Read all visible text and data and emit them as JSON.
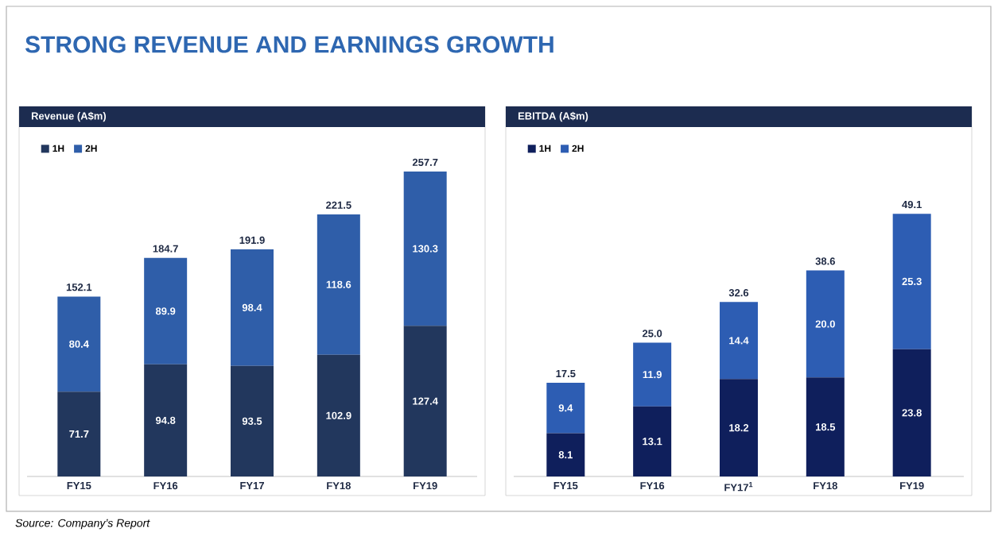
{
  "chart_data": [
    {
      "type": "bar",
      "title": "STRONG REVENUE AND EARNINGS GROWTH",
      "subtitle": "Revenue (A$m)",
      "categories": [
        "FY15",
        "FY16",
        "FY17",
        "FY18",
        "FY19"
      ],
      "stacked": true,
      "series": [
        {
          "name": "1H",
          "color": "#22375d",
          "values": [
            71.7,
            94.8,
            93.5,
            102.9,
            127.4
          ]
        },
        {
          "name": "2H",
          "color": "#2f5ea9",
          "values": [
            80.4,
            89.9,
            98.4,
            118.6,
            130.3
          ]
        }
      ],
      "totals": [
        "152.1",
        "184.7",
        "191.9",
        "221.5",
        "257.7"
      ],
      "data_labels": true,
      "legend": "top left",
      "annotations": [
        "Source: Company’s Report"
      ]
    },
    {
      "type": "bar",
      "title": "EBITDA (A$m)",
      "categories": [
        "FY15",
        "FY16",
        "FY17$^{1}$",
        "FY18",
        "FY19"
      ],
      "stacked": true,
      "series": [
        {
          "name": "1H",
          "color": "#0f1f5c",
          "values": [
            8.1,
            13.1,
            18.2,
            18.5,
            23.8
          ],
          "value_labels": [
            "8.1",
            "13.1",
            "18.2",
            "18.5",
            "23.8"
          ]
        },
        {
          "name": "2H",
          "color": "#2d5db3",
          "values": [
            9.4,
            11.9,
            14.4,
            20.0,
            25.3
          ],
          "value_labels": [
            "9.4",
            "11.9",
            "14.4",
            "20.0",
            "25.3"
          ]
        }
      ],
      "totals": [
        "17.5",
        "25.0",
        "32.6",
        "38.6",
        "49.1"
      ],
      "legend": "top left"
    }
  ]
}
